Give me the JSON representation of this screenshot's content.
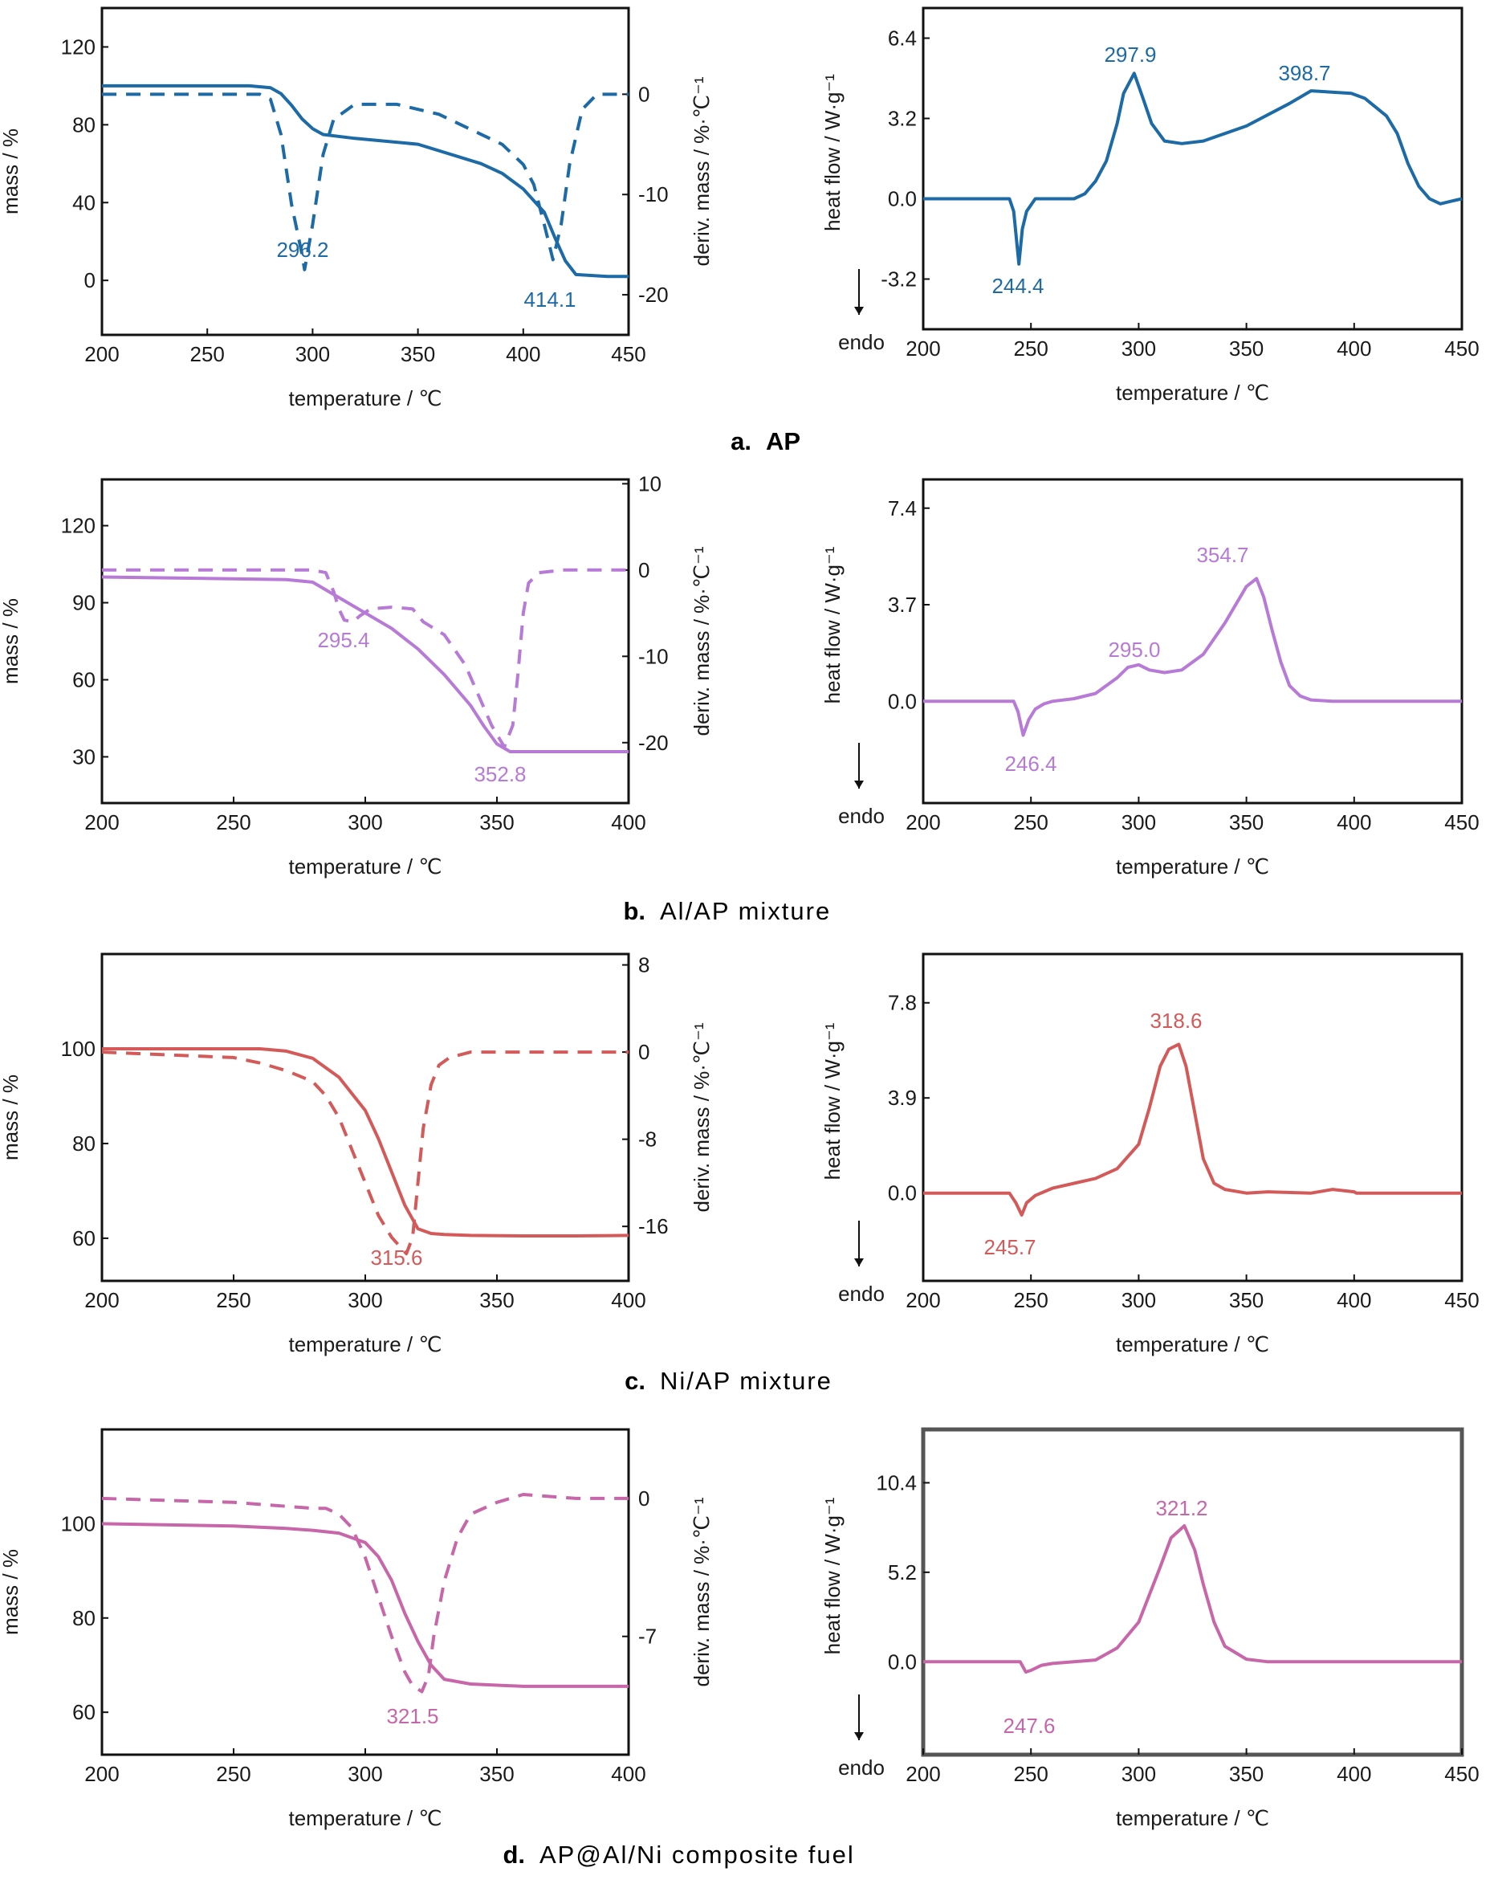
{
  "figure": {
    "panels": [
      {
        "caption_letter": "a.",
        "caption_text": "AP",
        "caption_bold": true,
        "color": "#1c6aa6",
        "tga": {
          "xlabel": "temperature / ℃",
          "ylabel": "mass / %",
          "y2label": "deriv. mass / %·℃⁻¹",
          "x_ticks": [
            "200",
            "250",
            "300",
            "350",
            "400",
            "450"
          ],
          "y_ticks": [
            "0",
            "40",
            "80",
            "120"
          ],
          "y2_ticks": [
            "0",
            "-10",
            "-20"
          ],
          "annotations": [
            "296.2",
            "414.1"
          ]
        },
        "dsc": {
          "xlabel": "temperature / ℃",
          "ylabel": "heat flow / W·g⁻¹",
          "endo_label": "endo",
          "x_ticks": [
            "200",
            "250",
            "300",
            "350",
            "400",
            "450"
          ],
          "y_ticks": [
            "6.4",
            "3.2",
            "0.0",
            "-3.2"
          ],
          "annotations": [
            "297.9",
            "398.7",
            "244.4"
          ]
        }
      },
      {
        "caption_letter": "b.",
        "caption_text": "Al/AP mixture",
        "caption_bold": false,
        "color": "#b77ad6",
        "tga": {
          "xlabel": "temperature / ℃",
          "ylabel": "mass / %",
          "y2label": "deriv. mass / %·℃⁻¹",
          "x_ticks": [
            "200",
            "250",
            "300",
            "350",
            "400"
          ],
          "y_ticks": [
            "30",
            "60",
            "90",
            "120"
          ],
          "y2_ticks": [
            "10",
            "0",
            "-10",
            "-20"
          ],
          "annotations": [
            "295.4",
            "352.8"
          ]
        },
        "dsc": {
          "xlabel": "temperature / ℃",
          "ylabel": "heat flow / W·g⁻¹",
          "endo_label": "endo",
          "x_ticks": [
            "200",
            "250",
            "300",
            "350",
            "400",
            "450"
          ],
          "y_ticks": [
            "7.4",
            "3.7",
            "0.0"
          ],
          "annotations": [
            "354.7",
            "295.0",
            "246.4"
          ]
        }
      },
      {
        "caption_letter": "c.",
        "caption_text": "Ni/AP mixture",
        "caption_bold": false,
        "color": "#d45a5a",
        "tga": {
          "xlabel": "temperature / ℃",
          "ylabel": "mass / %",
          "y2label": "deriv. mass / %·℃⁻¹",
          "x_ticks": [
            "200",
            "250",
            "300",
            "350",
            "400"
          ],
          "y_ticks": [
            "60",
            "80",
            "100"
          ],
          "y2_ticks": [
            "8",
            "0",
            "-8",
            "-16"
          ],
          "annotations": [
            "315.6"
          ]
        },
        "dsc": {
          "xlabel": "temperature / ℃",
          "ylabel": "heat flow / W·g⁻¹",
          "endo_label": "endo",
          "x_ticks": [
            "200",
            "250",
            "300",
            "350",
            "400",
            "450"
          ],
          "y_ticks": [
            "7.8",
            "3.9",
            "0.0"
          ],
          "annotations": [
            "318.6",
            "245.7"
          ]
        }
      },
      {
        "caption_letter": "d.",
        "caption_text": "AP@Al/Ni composite fuel",
        "caption_bold": false,
        "color": "#c766a8",
        "tga": {
          "xlabel": "temperature / ℃",
          "ylabel": "mass / %",
          "y2label": "deriv. mass / %·℃⁻¹",
          "x_ticks": [
            "200",
            "250",
            "300",
            "350",
            "400"
          ],
          "y_ticks": [
            "60",
            "80",
            "100"
          ],
          "y2_ticks": [
            "0",
            "-7"
          ],
          "annotations": [
            "321.5"
          ]
        },
        "dsc": {
          "xlabel": "temperature / ℃",
          "ylabel": "heat flow / W·g⁻¹",
          "endo_label": "endo",
          "x_ticks": [
            "200",
            "250",
            "300",
            "350",
            "400",
            "450"
          ],
          "y_ticks": [
            "10.4",
            "5.2",
            "0.0"
          ],
          "annotations": [
            "321.2",
            "247.6"
          ]
        }
      }
    ]
  },
  "chart_data": [
    {
      "type": "line",
      "panel": "a",
      "plot": "TGA/DTG",
      "xlabel": "temperature / ℃",
      "ylabel": "mass / %",
      "y2label": "deriv. mass / %·℃⁻¹",
      "xlim": [
        200,
        450
      ],
      "ylim": [
        -28,
        140
      ],
      "y2lim": [
        -24,
        8.6
      ],
      "series": [
        {
          "style": "solid",
          "axis": "left",
          "x": [
            200,
            270,
            280,
            285,
            290,
            295,
            300,
            305,
            320,
            350,
            380,
            390,
            400,
            410,
            415,
            420,
            425,
            440,
            450
          ],
          "y": [
            100,
            100,
            99,
            96,
            90,
            83,
            78,
            75,
            73,
            70,
            60,
            55,
            47,
            35,
            22,
            10,
            3,
            2,
            2
          ]
        },
        {
          "style": "dashed",
          "axis": "right",
          "x": [
            200,
            275,
            280,
            285,
            290,
            295,
            296.2,
            300,
            305,
            310,
            320,
            340,
            360,
            380,
            390,
            400,
            405,
            410,
            414.1,
            418,
            422,
            428,
            435,
            445,
            450
          ],
          "y": [
            0,
            0,
            -0.5,
            -4,
            -11,
            -16,
            -17.5,
            -13,
            -6,
            -2.5,
            -1,
            -1,
            -2,
            -4,
            -5,
            -7,
            -9,
            -13,
            -16.5,
            -13,
            -7,
            -1.5,
            0,
            0,
            0
          ]
        }
      ],
      "annotations": [
        {
          "text": "296.2",
          "x": 296.2
        },
        {
          "text": "414.1",
          "x": 414.1
        }
      ]
    },
    {
      "type": "line",
      "panel": "a",
      "plot": "DSC",
      "xlabel": "temperature / ℃",
      "ylabel": "heat flow / W·g⁻¹",
      "xlim": [
        200,
        450
      ],
      "ylim": [
        -5.2,
        7.6
      ],
      "series": [
        {
          "style": "solid",
          "x": [
            200,
            240,
            242,
            244.4,
            246,
            248,
            252,
            255,
            270,
            275,
            280,
            285,
            290,
            293,
            297.9,
            302,
            306,
            312,
            320,
            330,
            350,
            370,
            380,
            398.7,
            405,
            415,
            420,
            425,
            430,
            435,
            440,
            445,
            450
          ],
          "y": [
            0,
            0,
            -0.5,
            -2.6,
            -1.2,
            -0.5,
            0,
            0,
            0,
            0.2,
            0.7,
            1.5,
            3.0,
            4.2,
            5.0,
            4.0,
            3.0,
            2.3,
            2.2,
            2.3,
            2.9,
            3.8,
            4.3,
            4.2,
            4.0,
            3.3,
            2.6,
            1.4,
            0.5,
            0,
            -0.2,
            -0.1,
            0
          ]
        }
      ],
      "annotations": [
        {
          "text": "297.9",
          "x": 297.9
        },
        {
          "text": "398.7",
          "x": 398.7
        },
        {
          "text": "244.4",
          "x": 244.4
        }
      ]
    },
    {
      "type": "line",
      "panel": "b",
      "plot": "TGA/DTG",
      "xlabel": "temperature / ℃",
      "ylabel": "mass / %",
      "y2label": "deriv. mass / %·℃⁻¹",
      "xlim": [
        200,
        400
      ],
      "ylim": [
        12,
        138
      ],
      "y2lim": [
        -27,
        10.5
      ],
      "series": [
        {
          "style": "solid",
          "axis": "left",
          "x": [
            200,
            270,
            280,
            290,
            300,
            310,
            320,
            330,
            340,
            345,
            350,
            355,
            360,
            370,
            400
          ],
          "y": [
            100,
            99,
            98,
            92,
            86,
            80,
            72,
            62,
            50,
            42,
            35,
            32,
            32,
            32,
            32
          ]
        },
        {
          "style": "dashed",
          "axis": "right",
          "x": [
            200,
            280,
            285,
            288,
            290,
            292,
            295.4,
            298,
            302,
            310,
            318,
            322,
            330,
            338,
            343,
            348,
            352.8,
            356,
            358,
            360,
            362,
            366,
            375,
            400
          ],
          "y": [
            0,
            0,
            -0.3,
            -2.5,
            -4.5,
            -5.8,
            -6,
            -5.3,
            -4.5,
            -4.3,
            -4.5,
            -6,
            -7.5,
            -11,
            -14.5,
            -18,
            -20.5,
            -18,
            -12,
            -5,
            -1.5,
            -0.3,
            0,
            0
          ]
        }
      ],
      "annotations": [
        {
          "text": "295.4",
          "x": 295.4
        },
        {
          "text": "352.8",
          "x": 352.8
        }
      ]
    },
    {
      "type": "line",
      "panel": "b",
      "plot": "DSC",
      "xlabel": "temperature / ℃",
      "ylabel": "heat flow / W·g⁻¹",
      "xlim": [
        200,
        450
      ],
      "ylim": [
        -3.9,
        8.5
      ],
      "series": [
        {
          "style": "solid",
          "x": [
            200,
            242,
            244,
            246.4,
            249,
            252,
            256,
            260,
            270,
            280,
            290,
            295,
            300,
            305,
            312,
            320,
            330,
            340,
            350,
            354.7,
            358,
            362,
            366,
            370,
            375,
            380,
            390,
            450
          ],
          "y": [
            0,
            0,
            -0.4,
            -1.3,
            -0.7,
            -0.3,
            -0.1,
            0,
            0.1,
            0.3,
            0.9,
            1.3,
            1.4,
            1.2,
            1.1,
            1.2,
            1.8,
            3.0,
            4.4,
            4.7,
            4.0,
            2.7,
            1.5,
            0.6,
            0.2,
            0.05,
            0,
            0
          ]
        }
      ],
      "annotations": [
        {
          "text": "354.7",
          "x": 354.7
        },
        {
          "text": "295.0",
          "x": 295.0
        },
        {
          "text": "246.4",
          "x": 246.4
        }
      ]
    },
    {
      "type": "line",
      "panel": "c",
      "plot": "TGA/DTG",
      "xlabel": "temperature / ℃",
      "ylabel": "mass / %",
      "y2label": "deriv. mass / %·℃⁻¹",
      "xlim": [
        200,
        400
      ],
      "ylim": [
        51,
        120
      ],
      "y2lim": [
        -21,
        9
      ],
      "series": [
        {
          "style": "solid",
          "axis": "left",
          "x": [
            200,
            260,
            270,
            280,
            290,
            300,
            305,
            310,
            315,
            320,
            325,
            330,
            340,
            360,
            380,
            400
          ],
          "y": [
            100,
            100,
            99.5,
            98,
            94,
            87,
            81,
            74,
            67,
            62,
            61,
            60.8,
            60.6,
            60.5,
            60.5,
            60.6
          ]
        },
        {
          "style": "dashed",
          "axis": "right",
          "x": [
            200,
            250,
            260,
            270,
            280,
            285,
            290,
            295,
            300,
            305,
            310,
            315.6,
            318,
            320,
            322,
            325,
            328,
            332,
            340,
            360,
            400
          ],
          "y": [
            0,
            -0.5,
            -1,
            -1.7,
            -2.7,
            -4,
            -6,
            -9,
            -12,
            -15,
            -17,
            -18.5,
            -17,
            -12,
            -7,
            -3,
            -1.2,
            -0.5,
            0,
            0,
            0
          ]
        }
      ],
      "annotations": [
        {
          "text": "315.6",
          "x": 315.6
        }
      ]
    },
    {
      "type": "line",
      "panel": "c",
      "plot": "DSC",
      "xlabel": "temperature / ℃",
      "ylabel": "heat flow / W·g⁻¹",
      "xlim": [
        200,
        450
      ],
      "ylim": [
        -3.6,
        9.8
      ],
      "series": [
        {
          "style": "solid",
          "x": [
            200,
            240,
            243,
            245.7,
            248,
            252,
            260,
            270,
            280,
            290,
            300,
            305,
            310,
            314,
            318.6,
            322,
            326,
            330,
            335,
            340,
            350,
            360,
            380,
            390,
            400,
            401,
            450
          ],
          "y": [
            0,
            0,
            -0.4,
            -0.9,
            -0.4,
            -0.1,
            0.2,
            0.4,
            0.6,
            1.0,
            2.0,
            3.5,
            5.2,
            5.9,
            6.1,
            5.2,
            3.3,
            1.4,
            0.4,
            0.15,
            0,
            0.05,
            0,
            0.15,
            0.05,
            0,
            0
          ]
        }
      ],
      "annotations": [
        {
          "text": "318.6",
          "x": 318.6
        },
        {
          "text": "245.7",
          "x": 245.7
        }
      ]
    },
    {
      "type": "line",
      "panel": "d",
      "plot": "TGA/DTG",
      "xlabel": "temperature / ℃",
      "ylabel": "mass / %",
      "y2label": "deriv. mass / %·℃⁻¹",
      "xlim": [
        200,
        400
      ],
      "ylim": [
        51,
        120
      ],
      "y2lim": [
        -13,
        3.5
      ],
      "series": [
        {
          "style": "solid",
          "axis": "left",
          "x": [
            200,
            250,
            270,
            280,
            290,
            300,
            305,
            310,
            315,
            320,
            325,
            330,
            340,
            360,
            380,
            400
          ],
          "y": [
            100,
            99.5,
            99,
            98.6,
            98,
            96,
            93,
            88,
            81,
            75,
            70,
            67,
            66,
            65.5,
            65.5,
            65.5
          ]
        },
        {
          "style": "dashed",
          "axis": "right",
          "x": [
            200,
            250,
            270,
            280,
            285,
            290,
            295,
            300,
            305,
            310,
            315,
            318,
            321.5,
            324,
            326,
            330,
            335,
            340,
            350,
            360,
            380,
            400
          ],
          "y": [
            0,
            -0.2,
            -0.4,
            -0.5,
            -0.5,
            -0.8,
            -1.5,
            -3,
            -5,
            -7,
            -8.8,
            -9.5,
            -9.8,
            -9,
            -7,
            -4.2,
            -2,
            -0.8,
            -0.2,
            0.2,
            0,
            0
          ]
        }
      ],
      "annotations": [
        {
          "text": "321.5",
          "x": 321.5
        }
      ]
    },
    {
      "type": "line",
      "panel": "d",
      "plot": "DSC",
      "xlabel": "temperature / ℃",
      "ylabel": "heat flow / W·g⁻¹",
      "xlim": [
        200,
        450
      ],
      "ylim": [
        -5.4,
        13.5
      ],
      "series": [
        {
          "style": "solid",
          "x": [
            200,
            245,
            247.6,
            250,
            255,
            260,
            270,
            280,
            290,
            300,
            310,
            315,
            321.2,
            326,
            330,
            335,
            340,
            350,
            360,
            450
          ],
          "y": [
            0,
            0,
            -0.6,
            -0.5,
            -0.2,
            -0.1,
            0,
            0.1,
            0.8,
            2.3,
            5.5,
            7.2,
            7.9,
            6.5,
            4.5,
            2.3,
            0.9,
            0.15,
            0,
            0
          ]
        }
      ],
      "annotations": [
        {
          "text": "321.2",
          "x": 321.2
        },
        {
          "text": "247.6",
          "x": 247.6
        }
      ]
    }
  ]
}
